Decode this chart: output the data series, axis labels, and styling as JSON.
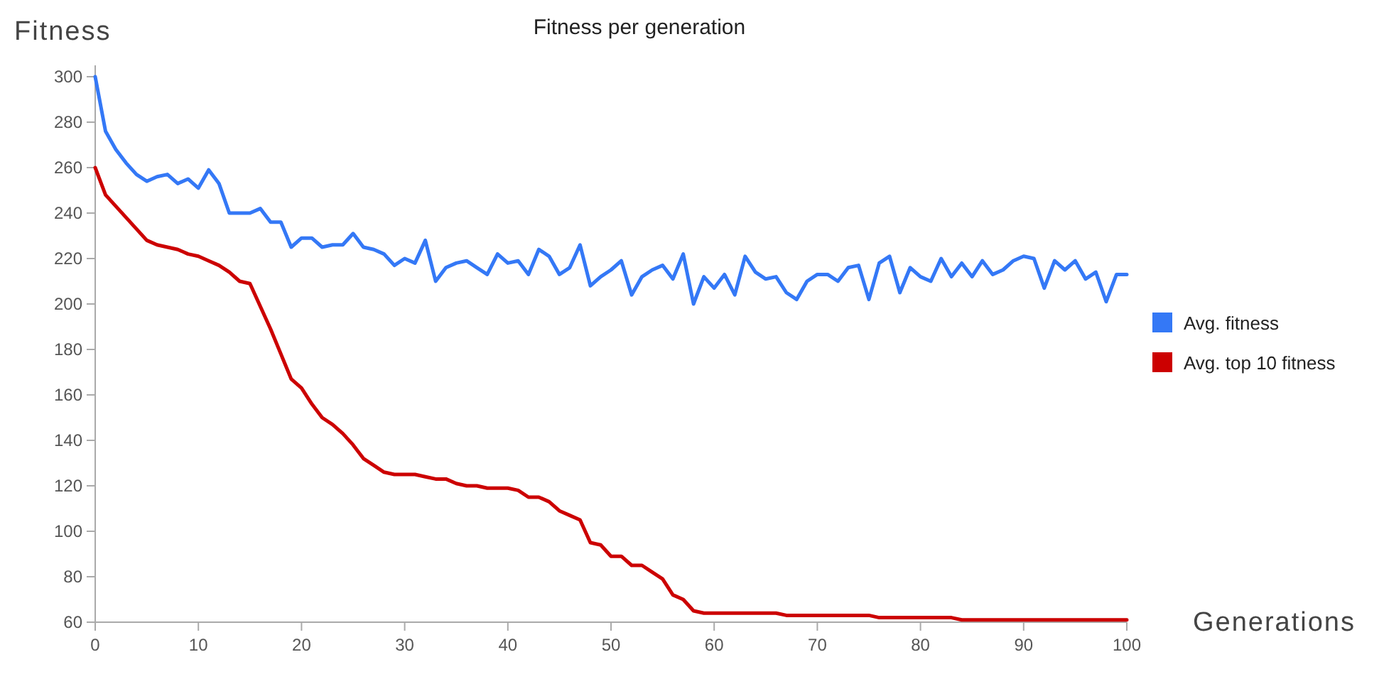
{
  "chart_data": {
    "type": "line",
    "title": "Fitness per generation",
    "xlabel": "Generations",
    "ylabel": "Fitness",
    "x": [
      0,
      1,
      2,
      3,
      4,
      5,
      6,
      7,
      8,
      9,
      10,
      11,
      12,
      13,
      14,
      15,
      16,
      17,
      18,
      19,
      20,
      21,
      22,
      23,
      24,
      25,
      26,
      27,
      28,
      29,
      30,
      31,
      32,
      33,
      34,
      35,
      36,
      37,
      38,
      39,
      40,
      41,
      42,
      43,
      44,
      45,
      46,
      47,
      48,
      49,
      50,
      51,
      52,
      53,
      54,
      55,
      56,
      57,
      58,
      59,
      60,
      61,
      62,
      63,
      64,
      65,
      66,
      67,
      68,
      69,
      70,
      71,
      72,
      73,
      74,
      75,
      76,
      77,
      78,
      79,
      80,
      81,
      82,
      83,
      84,
      85,
      86,
      87,
      88,
      89,
      90,
      91,
      92,
      93,
      94,
      95,
      96,
      97,
      98,
      99,
      100
    ],
    "series": [
      {
        "name": "Avg. fitness",
        "color": "#3478f6",
        "values": [
          300,
          276,
          268,
          262,
          257,
          254,
          256,
          257,
          253,
          255,
          251,
          259,
          253,
          240,
          240,
          240,
          242,
          236,
          236,
          225,
          229,
          229,
          225,
          226,
          226,
          231,
          225,
          224,
          222,
          217,
          220,
          218,
          228,
          210,
          216,
          218,
          219,
          216,
          213,
          222,
          218,
          219,
          213,
          224,
          221,
          213,
          216,
          226,
          208,
          212,
          215,
          219,
          204,
          212,
          215,
          217,
          211,
          222,
          200,
          212,
          207,
          213,
          204,
          221,
          214,
          211,
          212,
          205,
          202,
          210,
          213,
          213,
          210,
          216,
          217,
          202,
          218,
          221,
          205,
          216,
          212,
          210,
          220,
          212,
          218,
          212,
          219,
          213,
          215,
          219,
          221,
          220,
          207,
          219,
          215,
          219,
          211,
          214,
          201,
          213,
          213
        ]
      },
      {
        "name": "Avg. top 10 fitness",
        "color": "#cc0000",
        "values": [
          260,
          248,
          243,
          238,
          233,
          228,
          226,
          225,
          224,
          222,
          221,
          219,
          217,
          214,
          210,
          209,
          199,
          189,
          178,
          167,
          163,
          156,
          150,
          147,
          143,
          138,
          132,
          129,
          126,
          125,
          125,
          125,
          124,
          123,
          123,
          121,
          120,
          120,
          119,
          119,
          119,
          118,
          115,
          115,
          113,
          109,
          107,
          105,
          95,
          94,
          89,
          89,
          85,
          85,
          82,
          79,
          72,
          70,
          65,
          64,
          64,
          64,
          64,
          64,
          64,
          64,
          64,
          63,
          63,
          63,
          63,
          63,
          63,
          63,
          63,
          63,
          62,
          62,
          62,
          62,
          62,
          62,
          62,
          62,
          61,
          61,
          61,
          61,
          61,
          61,
          61,
          61,
          61,
          61,
          61,
          61,
          61,
          61,
          61,
          61,
          61
        ]
      }
    ],
    "xlim": [
      0,
      100
    ],
    "xticks": [
      0,
      10,
      20,
      30,
      40,
      50,
      60,
      70,
      80,
      90,
      100
    ],
    "ylim": [
      60,
      305
    ],
    "yticks": [
      60,
      80,
      100,
      120,
      140,
      160,
      180,
      200,
      220,
      240,
      260,
      280,
      300
    ],
    "grid": false,
    "legend": "right",
    "marker": "none",
    "line_style": "solid"
  }
}
